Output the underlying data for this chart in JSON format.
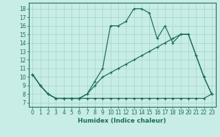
{
  "xlabel": "Humidex (Indice chaleur)",
  "xlim": [
    -0.5,
    23.5
  ],
  "ylim": [
    6.5,
    18.7
  ],
  "xticks": [
    0,
    1,
    2,
    3,
    4,
    5,
    6,
    7,
    8,
    9,
    10,
    11,
    12,
    13,
    14,
    15,
    16,
    17,
    18,
    19,
    20,
    21,
    22,
    23
  ],
  "yticks": [
    7,
    8,
    9,
    10,
    11,
    12,
    13,
    14,
    15,
    16,
    17,
    18
  ],
  "background_color": "#c8ece6",
  "grid_color": "#a0d4cc",
  "line_color": "#1a6b5a",
  "line1_x": [
    0,
    1,
    2,
    3,
    4,
    5,
    6,
    7,
    8,
    9,
    10,
    11,
    12,
    13,
    14,
    15,
    16,
    17,
    18,
    19,
    20,
    21,
    22,
    23
  ],
  "line1_y": [
    10.3,
    9.0,
    8.0,
    7.5,
    7.5,
    7.5,
    7.5,
    7.5,
    7.5,
    7.5,
    7.5,
    7.5,
    7.5,
    7.5,
    7.5,
    7.5,
    7.5,
    7.5,
    7.5,
    7.5,
    7.5,
    7.5,
    7.5,
    8.0
  ],
  "line2_x": [
    0,
    1,
    2,
    3,
    4,
    5,
    6,
    7,
    8,
    9,
    10,
    11,
    12,
    13,
    14,
    15,
    16,
    17,
    18,
    19,
    20,
    21,
    22,
    23
  ],
  "line2_y": [
    10.3,
    9.0,
    8.0,
    7.5,
    7.5,
    7.5,
    7.5,
    8.0,
    9.0,
    10.0,
    10.5,
    11.0,
    11.5,
    12.0,
    12.5,
    13.0,
    13.5,
    14.0,
    14.5,
    15.0,
    15.0,
    12.5,
    10.0,
    8.0
  ],
  "line3_x": [
    0,
    1,
    2,
    3,
    4,
    5,
    6,
    7,
    8,
    9,
    10,
    11,
    12,
    13,
    14,
    15,
    16,
    17,
    18,
    19,
    20,
    21,
    22,
    23
  ],
  "line3_y": [
    10.3,
    9.0,
    8.0,
    7.5,
    7.5,
    7.5,
    7.5,
    8.0,
    9.5,
    11.0,
    16.0,
    16.0,
    16.5,
    18.0,
    18.0,
    17.5,
    14.5,
    16.0,
    14.0,
    15.0,
    15.0,
    12.5,
    10.0,
    8.0
  ],
  "xlabel_fontsize": 6.5,
  "tick_fontsize": 5.5
}
